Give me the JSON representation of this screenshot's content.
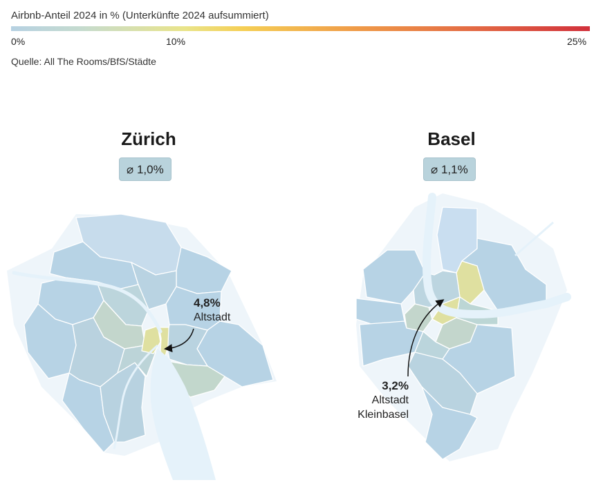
{
  "legend": {
    "title": "Airbnb-Anteil 2024 in % (Unterkünfte 2024 aufsummiert)",
    "ticks": [
      {
        "label": "0%",
        "value": 0
      },
      {
        "label": "10%",
        "value": 10
      },
      {
        "label": "25%",
        "value": 25
      }
    ],
    "scale_min": 0,
    "scale_max": 25,
    "colors": {
      "low": "#b6d1e2",
      "mid": "#f5cf55",
      "high": "#d1303b"
    }
  },
  "source": "Quelle: All The Rooms/BfS/Städte",
  "cities": [
    {
      "name": "Zürich",
      "average": "⌀ 1,0%",
      "highlight": {
        "value": "4,8%",
        "label": "Altstadt"
      }
    },
    {
      "name": "Basel",
      "average": "⌀ 1,1%",
      "highlight": {
        "value": "3,2%",
        "label_line1": "Altstadt",
        "label_line2": "Kleinbasel"
      }
    }
  ],
  "colors": {
    "district_base": "#b7d3e5",
    "district_mid": "#c3d6cc",
    "district_high": "#dfe0a0",
    "water": "#e5f2fa",
    "outline": "#ffffff"
  }
}
